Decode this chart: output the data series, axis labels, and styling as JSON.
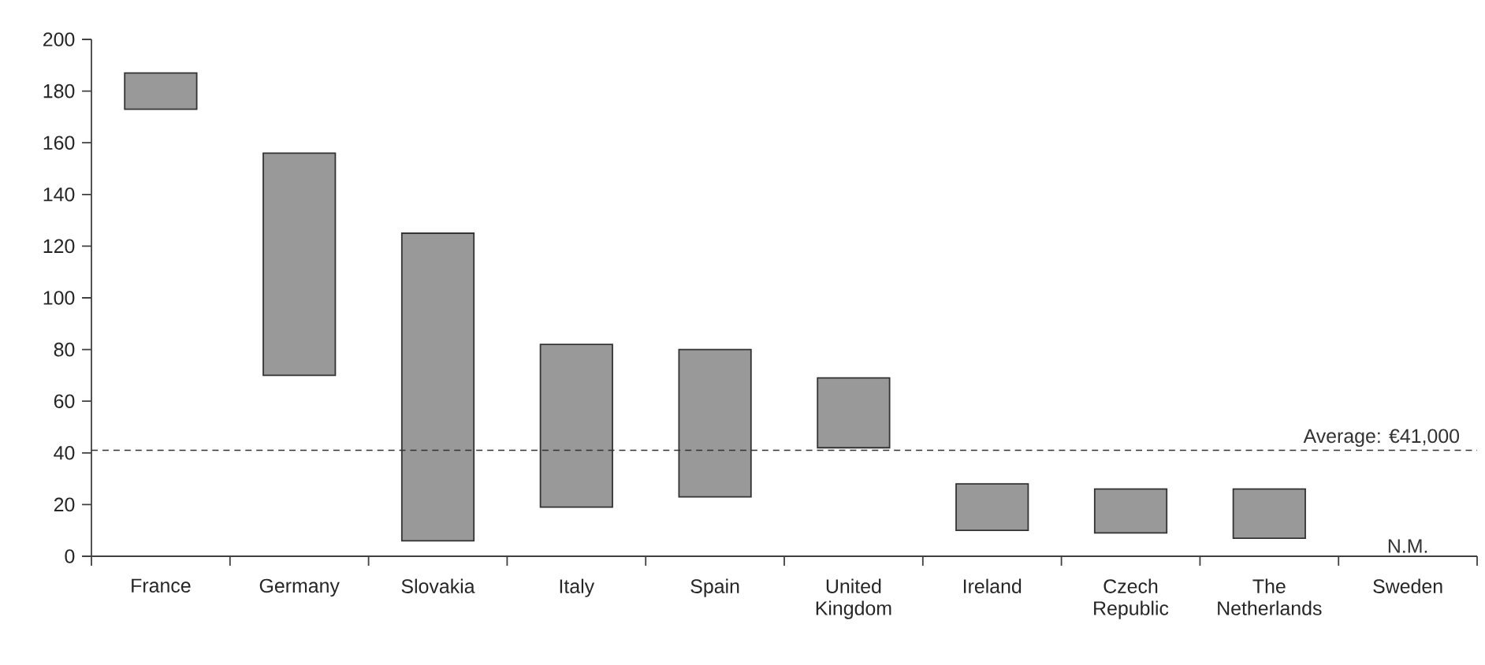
{
  "chart_data": {
    "type": "bar",
    "categories": [
      "France",
      "Germany",
      "Slovakia",
      "Italy",
      "Spain",
      "United Kingdom",
      "Ireland",
      "Czech Republic",
      "The Netherlands",
      "Sweden"
    ],
    "base": [
      173,
      70,
      6,
      19,
      23,
      42,
      10,
      9,
      7,
      null
    ],
    "values": [
      14,
      86,
      119,
      63,
      57,
      27,
      18,
      17,
      19,
      null
    ],
    "color": "#999999",
    "ylim": [
      0,
      200
    ],
    "yticks": [
      0,
      20,
      40,
      60,
      80,
      100,
      120,
      140,
      160,
      180,
      200
    ],
    "grid": false,
    "ref_lines": [
      {
        "axis": "y",
        "value": 41,
        "label": "Average: €41,000",
        "line_style": "dashed",
        "color": "#333333"
      }
    ],
    "annotations": [
      "N.M."
    ]
  }
}
